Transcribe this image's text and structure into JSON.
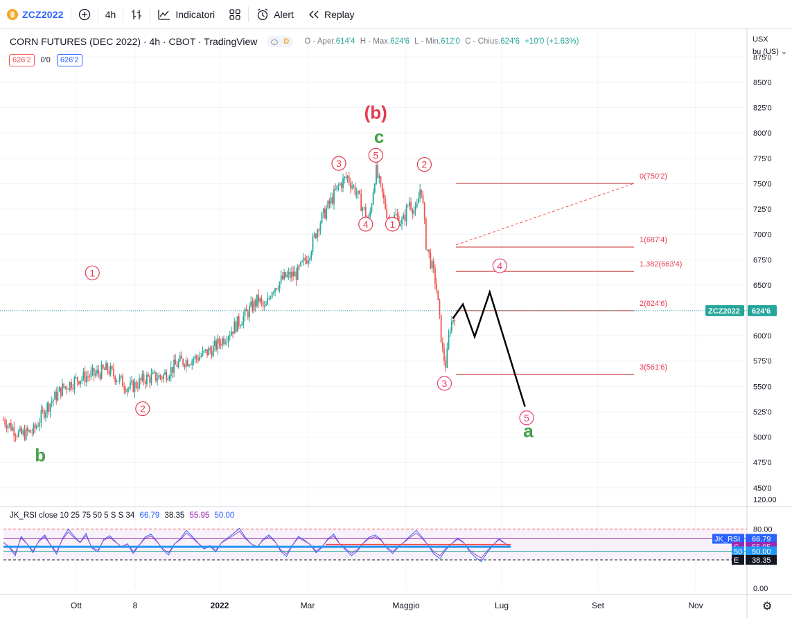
{
  "toolbar": {
    "symbol": "ZCZ2022",
    "add_icon": "plus-circle-icon",
    "interval": "4h",
    "bars_icon": "bar-style-icon",
    "indicators_label": "Indicatori",
    "layout_icon": "grid-icon",
    "alert_label": "Alert",
    "replay_label": "Replay"
  },
  "header": {
    "title": "CORN FUTURES (DEC 2022) · 4h · CBOT · TradingView",
    "d_badge": "D",
    "o_label": "O - Aper.",
    "o_value": "614'4",
    "h_label": "H - Max.",
    "h_value": "624'6",
    "l_label": "L - Min.",
    "l_value": "612'0",
    "c_label": "C - Chius.",
    "c_value": "624'6",
    "change": "+10'0 (+1.63%)",
    "box_left": "626'2",
    "box_mid": "0'0",
    "box_right": "626'2"
  },
  "currency": {
    "currency": "USX",
    "unit": "bu (US)"
  },
  "price_axis": {
    "ticks": [
      "875'0",
      "850'0",
      "825'0",
      "800'0",
      "775'0",
      "750'0",
      "725'0",
      "700'0",
      "675'0",
      "650'0",
      "625'0",
      "600'0",
      "575'0",
      "550'0",
      "525'0",
      "500'0",
      "475'0",
      "450'0"
    ],
    "values": [
      875,
      850,
      825,
      800,
      775,
      750,
      725,
      700,
      675,
      650,
      625,
      600,
      575,
      550,
      525,
      500,
      475,
      450
    ]
  },
  "time_axis": {
    "labels": [
      "Ott",
      "8",
      "2022",
      "Mar",
      "Maggio",
      "Lug",
      "Set",
      "Nov"
    ],
    "bold": [
      false,
      false,
      true,
      false,
      false,
      false,
      false,
      false
    ]
  },
  "last_price": {
    "symbol": "ZCZ2022",
    "value": "624'6",
    "price": 624.75
  },
  "waves": {
    "circled": [
      {
        "label": "1",
        "color": "#e53950",
        "price": 662,
        "day": 53
      },
      {
        "label": "2",
        "color": "#e53950",
        "price": 528,
        "day": 83
      },
      {
        "label": "3",
        "color": "#e53950",
        "price": 770,
        "day": 200
      },
      {
        "label": "4",
        "color": "#e53950",
        "price": 710,
        "day": 216
      },
      {
        "label": "5",
        "color": "#e53950",
        "price": 778,
        "day": 222
      },
      {
        "label": "1",
        "color": "#e53950",
        "price": 710,
        "day": 232
      },
      {
        "label": "2",
        "color": "#e53950",
        "price": 769,
        "day": 251
      },
      {
        "label": "3",
        "color": "#ec407a",
        "price": 553,
        "day": 263
      },
      {
        "label": "4",
        "color": "#ec407a",
        "price": 669,
        "day": 296
      },
      {
        "label": "5",
        "color": "#ec407a",
        "price": 519,
        "day": 312
      }
    ],
    "letters": [
      {
        "label": "b",
        "color": "#43a047",
        "price": 483,
        "day": 22
      },
      {
        "label": "c",
        "color": "#43a047",
        "price": 797,
        "day": 224
      },
      {
        "label": "(b)",
        "color": "#e53950",
        "price": 821,
        "day": 222
      },
      {
        "label": "a",
        "color": "#43a047",
        "price": 507,
        "day": 313
      }
    ]
  },
  "fib": {
    "levels": [
      {
        "text": "0(750'2)",
        "price": 750.25
      },
      {
        "text": "1(687'4)",
        "price": 687.5
      },
      {
        "text": "1.382(663'4)",
        "price": 663.5
      },
      {
        "text": "2(624'6)",
        "price": 624.75
      },
      {
        "text": "3(561'6)",
        "price": 561.75
      }
    ],
    "start_day": 237,
    "end_day": 330
  },
  "projection": [
    [
      268,
      617
    ],
    [
      274,
      631
    ],
    [
      281,
      599
    ],
    [
      290,
      643
    ],
    [
      311,
      530
    ]
  ],
  "price_series": {
    "days": [
      0,
      10,
      18,
      25,
      35,
      45,
      55,
      62,
      75,
      85,
      95,
      105,
      115,
      125,
      135,
      145,
      152,
      156,
      160,
      168,
      175,
      182,
      188,
      195,
      200,
      205,
      210,
      214,
      218,
      222,
      226,
      230,
      234,
      238,
      242,
      246,
      249,
      252,
      258,
      262,
      264,
      266,
      270
    ],
    "closes": [
      517,
      502,
      506,
      528,
      548,
      558,
      562,
      567,
      548,
      558,
      560,
      574,
      578,
      587,
      604,
      622,
      636,
      625,
      646,
      658,
      661,
      680,
      710,
      732,
      748,
      757,
      743,
      727,
      713,
      764,
      738,
      713,
      718,
      711,
      733,
      720,
      751,
      691,
      651,
      582,
      570,
      608,
      625
    ]
  },
  "rsi": {
    "header": "JK_RSI close 10 25 75 50 5 S S 34",
    "values": [
      "66.79",
      "38.35",
      "55.95",
      "50.00"
    ],
    "axis_ticks": [
      "120.00",
      "80.00",
      "0.00"
    ],
    "axis_values": [
      120,
      80,
      0
    ],
    "tags": [
      {
        "label": "JK_RSI",
        "value": "66.79",
        "level": 66.79,
        "color": "#2962ff"
      },
      {
        "label": "S",
        "value": "55.95",
        "level": 55.95,
        "color": "#9c27b0"
      },
      {
        "label": "50",
        "value": "50.00",
        "level": 50,
        "color": "#2196f3"
      },
      {
        "label": "E",
        "value": "38.35",
        "level": 38.35,
        "color": "#131722"
      }
    ],
    "bands": [
      80,
      66.79,
      50,
      38.35
    ],
    "samples": [
      62,
      55,
      44,
      70,
      60,
      48,
      64,
      72,
      58,
      46,
      67,
      80,
      70,
      62,
      74,
      54,
      49,
      66,
      71,
      63,
      55,
      60,
      47,
      58,
      69,
      73,
      64,
      52,
      45,
      60,
      67,
      78,
      70,
      61,
      53,
      57,
      49,
      62,
      68,
      74,
      81,
      69,
      60,
      55,
      66,
      72,
      64,
      50,
      43,
      58,
      70,
      65,
      59,
      48,
      55,
      67,
      73,
      60,
      52,
      44,
      50,
      61,
      69,
      72,
      66,
      54,
      47,
      56,
      63,
      71,
      78,
      69,
      58,
      46,
      40,
      52,
      60,
      68,
      62,
      50,
      42,
      36,
      48,
      58,
      67,
      61,
      55
    ]
  }
}
